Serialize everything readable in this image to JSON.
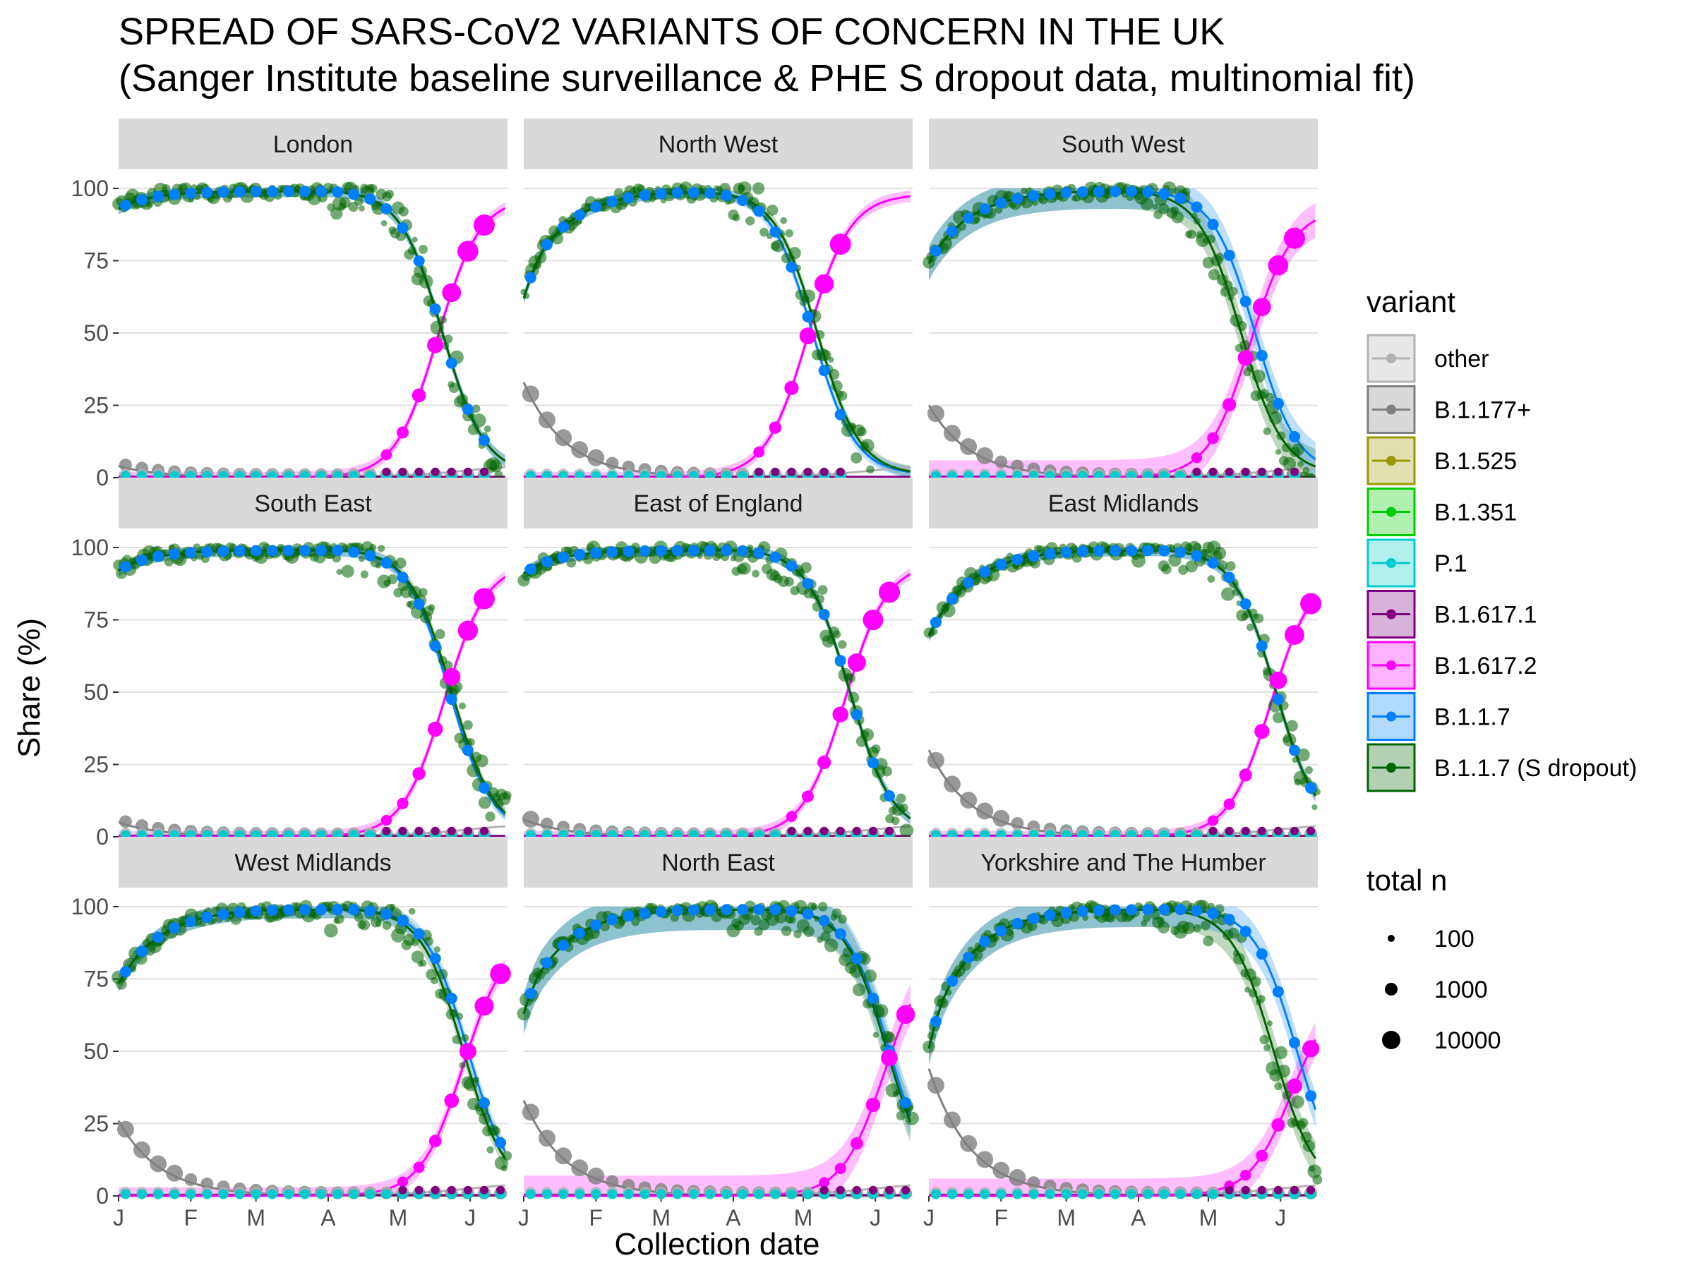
{
  "title_line1": "SPREAD OF SARS-CoV2 VARIANTS OF CONCERN IN THE UK",
  "title_line2": "(Sanger Institute baseline surveillance & PHE S dropout data, multinomial fit)",
  "chart_data": {
    "type": "scatter",
    "xlabel": "Collection date",
    "ylabel": "Share (%)",
    "xticks": [
      "J",
      "F",
      "M",
      "A",
      "M",
      "J"
    ],
    "xtick_days": [
      0,
      31,
      59,
      90,
      120,
      151
    ],
    "x_range_days": [
      0,
      167
    ],
    "ylim": [
      0,
      100
    ],
    "yticks": [
      0,
      25,
      50,
      75,
      100
    ],
    "grid": true,
    "legend_placement": "right",
    "legend_title": "variant",
    "size_legend_title": "total n",
    "size_legend_values": [
      "100",
      "1000",
      "10000"
    ],
    "series": [
      {
        "name": "other",
        "color": "#b3b3b3"
      },
      {
        "name": "B.1.177+",
        "color": "#808080"
      },
      {
        "name": "B.1.525",
        "color": "#999900"
      },
      {
        "name": "B.1.351",
        "color": "#00cc00"
      },
      {
        "name": "P.1",
        "color": "#00cccc"
      },
      {
        "name": "B.1.617.1",
        "color": "#800080"
      },
      {
        "name": "B.1.617.2",
        "color": "#ff00ff"
      },
      {
        "name": "B.1.1.7",
        "color": "#0080ff"
      },
      {
        "name": "B.1.1.7 (S dropout)",
        "color": "#006400"
      }
    ],
    "panels": [
      {
        "name": "London",
        "b117_start": 93,
        "b177_start": 4,
        "cross_day": 139,
        "s_dropout_shift": 0,
        "b1172_end": 97,
        "band_width": 1
      },
      {
        "name": "North West",
        "b117_start": 62,
        "b177_start": 33,
        "cross_day": 124,
        "s_dropout_shift": 2,
        "b1172_end": 98,
        "band_width": 1
      },
      {
        "name": "South West",
        "b117_start": 74,
        "b177_start": 25,
        "cross_day": 140,
        "s_dropout_shift": -6,
        "b1172_end": 93,
        "band_width": 5
      },
      {
        "name": "South East",
        "b117_start": 92,
        "b177_start": 5,
        "cross_day": 142,
        "s_dropout_shift": 1,
        "b1172_end": 95,
        "band_width": 1
      },
      {
        "name": "East of England",
        "b117_start": 91,
        "b177_start": 6,
        "cross_day": 140,
        "s_dropout_shift": 0,
        "b1172_end": 95,
        "band_width": 1
      },
      {
        "name": "East Midlands",
        "b117_start": 72,
        "b177_start": 30,
        "cross_day": 149,
        "s_dropout_shift": 0,
        "b1172_end": 93,
        "band_width": 1
      },
      {
        "name": "West Midlands",
        "b117_start": 76,
        "b177_start": 26,
        "cross_day": 150,
        "s_dropout_shift": -2,
        "b1172_end": 90,
        "band_width": 2
      },
      {
        "name": "North East",
        "b117_start": 63,
        "b177_start": 33,
        "cross_day": 157,
        "s_dropout_shift": -1,
        "b1172_end": 86,
        "band_width": 6
      },
      {
        "name": "Yorkshire and The Humber",
        "b117_start": 51,
        "b177_start": 44,
        "cross_day": 158,
        "s_dropout_shift": -10,
        "b1172_end": 72,
        "band_width": 5
      }
    ]
  }
}
